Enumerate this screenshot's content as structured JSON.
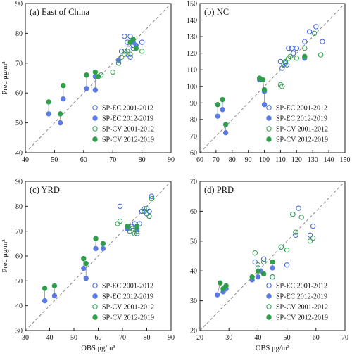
{
  "chart_data": [
    {
      "type": "scatter",
      "title": "(a) East of China",
      "xlim": [
        40,
        90
      ],
      "ylim": [
        40,
        90
      ],
      "xticks": [
        40,
        50,
        60,
        70,
        80,
        90
      ],
      "yticks": [
        40,
        50,
        60,
        70,
        80,
        90
      ],
      "xlabel": "",
      "ylabel": "Pred μg/m³",
      "diagonal": "1:1 dashed line",
      "legend_position": "bottom-right",
      "series": [
        {
          "name": "SP-EC 2001-2012",
          "color": "#3e63dc",
          "filled": false,
          "points": [
            [
              74,
              79
            ],
            [
              75,
              77
            ],
            [
              76,
              79
            ],
            [
              77,
              75
            ],
            [
              75,
              73
            ],
            [
              76,
              72
            ],
            [
              77,
              76
            ],
            [
              80,
              77
            ],
            [
              73,
              74
            ],
            [
              72,
              70
            ]
          ]
        },
        {
          "name": "SP-EC 2012-2019",
          "color": "#5b7be3",
          "filled": true,
          "points": [
            [
              48,
              53
            ],
            [
              52,
              50
            ],
            [
              53,
              58
            ],
            [
              61,
              61.5
            ],
            [
              64,
              61
            ],
            [
              64,
              65.5
            ],
            [
              77,
              77
            ],
            [
              78,
              76
            ],
            [
              72,
              71
            ]
          ]
        },
        {
          "name": "SP-CV 2001-2012",
          "color": "#2f9e4a",
          "filled": false,
          "points": [
            [
              70,
              67
            ],
            [
              73,
              72
            ],
            [
              74,
              74
            ],
            [
              75,
              74
            ],
            [
              76,
              73
            ],
            [
              80,
              74
            ],
            [
              72,
              70
            ],
            [
              66,
              66
            ],
            [
              74,
              73
            ]
          ]
        },
        {
          "name": "SP-CV 2012-2019",
          "color": "#2f9e4a",
          "filled": true,
          "points": [
            [
              48,
              57
            ],
            [
              52,
              53
            ],
            [
              53,
              62.5
            ],
            [
              61,
              66
            ],
            [
              64,
              67
            ],
            [
              65,
              65.5
            ],
            [
              78,
              75
            ],
            [
              77,
              78
            ],
            [
              76,
              77
            ]
          ]
        }
      ]
    },
    {
      "type": "scatter",
      "title": "(b) NC",
      "xlim": [
        60,
        150
      ],
      "ylim": [
        60,
        150
      ],
      "xticks": [
        60,
        70,
        80,
        90,
        100,
        110,
        120,
        130,
        140,
        150
      ],
      "yticks": [
        60,
        70,
        80,
        90,
        100,
        110,
        120,
        130,
        140,
        150
      ],
      "xlabel": "",
      "ylabel": "",
      "diagonal": "1:1 dashed line",
      "legend_position": "bottom-right",
      "series": [
        {
          "name": "SP-EC 2001-2012",
          "color": "#3e63dc",
          "filled": false,
          "points": [
            [
              110,
              115
            ],
            [
              113,
              114
            ],
            [
              115,
              123
            ],
            [
              117,
              123
            ],
            [
              118,
              120
            ],
            [
              120,
              123
            ],
            [
              125,
              127
            ],
            [
              128,
              133
            ],
            [
              132,
              136
            ],
            [
              136,
              127
            ],
            [
              111,
              111
            ],
            [
              114,
              113
            ]
          ]
        },
        {
          "name": "SP-EC 2012-2019",
          "color": "#5b7be3",
          "filled": true,
          "points": [
            [
              71,
              82
            ],
            [
              74,
              86
            ],
            [
              76,
              72
            ],
            [
              97,
              104
            ],
            [
              100,
              97
            ],
            [
              100,
              89
            ],
            [
              125,
              117
            ]
          ]
        },
        {
          "name": "SP-CV 2001-2012",
          "color": "#2f9e4a",
          "filled": false,
          "points": [
            [
              110,
              101
            ],
            [
              111,
              100
            ],
            [
              112,
              113
            ],
            [
              115,
              117
            ],
            [
              116,
              118
            ],
            [
              120,
              117
            ],
            [
              125,
              123
            ],
            [
              131,
              132
            ],
            [
              135,
              119
            ],
            [
              113,
              115
            ]
          ]
        },
        {
          "name": "SP-CV 2012-2019",
          "color": "#2f9e4a",
          "filled": true,
          "points": [
            [
              71,
              89
            ],
            [
              74,
              92
            ],
            [
              76,
              77
            ],
            [
              97,
              105
            ],
            [
              99,
              104
            ],
            [
              100,
              98
            ],
            [
              125,
              118
            ]
          ]
        }
      ]
    },
    {
      "type": "scatter",
      "title": "(c) YRD",
      "xlim": [
        30,
        90
      ],
      "ylim": [
        30,
        90
      ],
      "xticks": [
        30,
        40,
        50,
        60,
        70,
        80,
        90
      ],
      "yticks": [
        30,
        40,
        50,
        60,
        70,
        80,
        90
      ],
      "xlabel": "OBS μg/m³",
      "ylabel": "Pred μg/m³",
      "diagonal": "1:1 dashed line",
      "legend_position": "bottom-right",
      "series": [
        {
          "name": "SP-EC 2001-2012",
          "color": "#3e63dc",
          "filled": false,
          "points": [
            [
              69,
              80
            ],
            [
              72,
              71
            ],
            [
              74,
              72
            ],
            [
              75,
              73
            ],
            [
              76,
              69
            ],
            [
              77,
              73
            ],
            [
              78,
              78
            ],
            [
              79,
              79
            ],
            [
              80,
              77
            ],
            [
              81,
              78
            ],
            [
              82,
              84
            ],
            [
              73,
              70
            ]
          ]
        },
        {
          "name": "SP-EC 2012-2019",
          "color": "#5b7be3",
          "filled": true,
          "points": [
            [
              38,
              42
            ],
            [
              42,
              44
            ],
            [
              54,
              55
            ],
            [
              55,
              51
            ],
            [
              59,
              63
            ],
            [
              62,
              63
            ],
            [
              72,
              71
            ],
            [
              76,
              71
            ]
          ]
        },
        {
          "name": "SP-CV 2001-2012",
          "color": "#2f9e4a",
          "filled": false,
          "points": [
            [
              69,
              74
            ],
            [
              68,
              73
            ],
            [
              73,
              70
            ],
            [
              75,
              69
            ],
            [
              76,
              70
            ],
            [
              79,
              78
            ],
            [
              80,
              79
            ],
            [
              81,
              76
            ],
            [
              82,
              83
            ],
            [
              74,
              71
            ]
          ]
        },
        {
          "name": "SP-CV 2012-2019",
          "color": "#2f9e4a",
          "filled": true,
          "points": [
            [
              38,
              47
            ],
            [
              42,
              48
            ],
            [
              54,
              59
            ],
            [
              55,
              57
            ],
            [
              59,
              67
            ],
            [
              62,
              65
            ],
            [
              72,
              72
            ],
            [
              76,
              72
            ]
          ]
        }
      ]
    },
    {
      "type": "scatter",
      "title": "(d) PRD",
      "xlim": [
        20,
        70
      ],
      "ylim": [
        20,
        70
      ],
      "xticks": [
        20,
        30,
        40,
        50,
        60,
        70
      ],
      "yticks": [
        20,
        30,
        40,
        50,
        60,
        70
      ],
      "xlabel": "OBS μg/m³",
      "ylabel": "",
      "diagonal": "1:1 dashed line",
      "legend_position": "bottom-right",
      "series": [
        {
          "name": "SP-EC 2001-2012",
          "color": "#3e63dc",
          "filled": false,
          "points": [
            [
              39,
              43
            ],
            [
              40,
              41
            ],
            [
              42,
              44
            ],
            [
              45,
              38
            ],
            [
              48,
              48
            ],
            [
              50,
              42
            ],
            [
              52,
              59
            ],
            [
              53,
              52
            ],
            [
              54,
              61
            ],
            [
              58,
              52
            ],
            [
              59,
              55
            ]
          ]
        },
        {
          "name": "SP-EC 2012-2019",
          "color": "#5b7be3",
          "filled": true,
          "points": [
            [
              26,
              32
            ],
            [
              28,
              33
            ],
            [
              29,
              34
            ],
            [
              38,
              37
            ],
            [
              40,
              38
            ],
            [
              41,
              40
            ],
            [
              45,
              41
            ]
          ]
        },
        {
          "name": "SP-CV 2001-2012",
          "color": "#2f9e4a",
          "filled": false,
          "points": [
            [
              39,
              46
            ],
            [
              40,
              42
            ],
            [
              42,
              43
            ],
            [
              45,
              38
            ],
            [
              48,
              48
            ],
            [
              50,
              47
            ],
            [
              52,
              59
            ],
            [
              53,
              53
            ],
            [
              55,
              58
            ],
            [
              58,
              50
            ],
            [
              59,
              51
            ]
          ]
        },
        {
          "name": "SP-CV 2012-2019",
          "color": "#2f9e4a",
          "filled": true,
          "points": [
            [
              27,
              36
            ],
            [
              28,
              34
            ],
            [
              29,
              35
            ],
            [
              38,
              38
            ],
            [
              40,
              40
            ],
            [
              42,
              39
            ],
            [
              45,
              43
            ]
          ]
        }
      ]
    }
  ]
}
